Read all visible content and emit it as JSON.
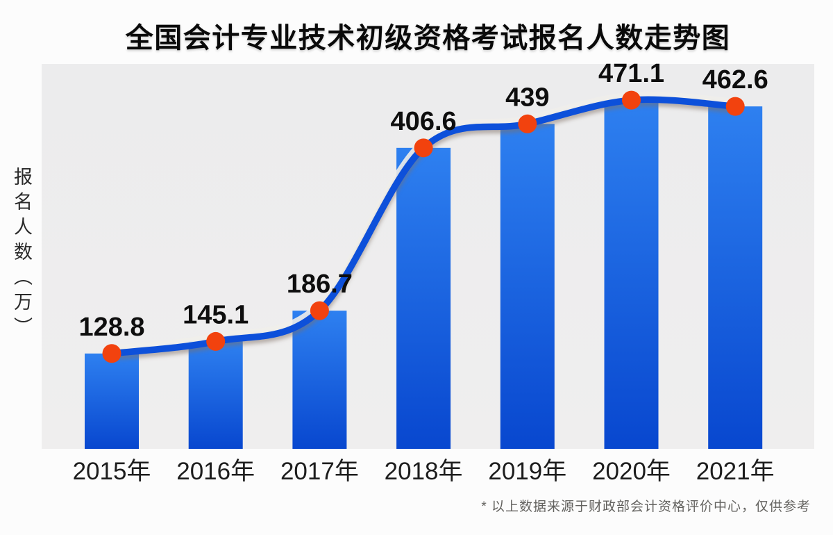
{
  "title": "全国会计专业技术初级资格考试报名人数走势图",
  "y_axis_label": "报名人数（万）",
  "footnote": "* 以上数据来源于财政部会计资格评价中心，仅供参考",
  "colors": {
    "page_bg": "#fcfcfc",
    "panel_bg": "#ededee",
    "bar_top": "#2e80f0",
    "bar_bottom": "#0847cf",
    "line": "#0d50da",
    "line_highlight": "#f0eeea",
    "marker": "#f2420e",
    "value_label": "#0e0e0e",
    "axis_label": "#1d1d1d",
    "footnote_text": "#63625f"
  },
  "chart_data": {
    "type": "bar",
    "has_line_overlay": true,
    "categories": [
      "2015年",
      "2016年",
      "2017年",
      "2018年",
      "2019年",
      "2020年",
      "2021年"
    ],
    "values": [
      128.8,
      145.1,
      186.7,
      406.6,
      439,
      471.1,
      462.6
    ],
    "value_labels": [
      "128.8",
      "145.1",
      "186.7",
      "406.6",
      "439",
      "471.1",
      "462.6"
    ],
    "title": "全国会计专业技术初级资格考试报名人数走势图",
    "xlabel": "",
    "ylabel": "报名人数（万）",
    "ylim": [
      0,
      520
    ],
    "grid": false,
    "legend": false,
    "marker_shape": "circle"
  }
}
